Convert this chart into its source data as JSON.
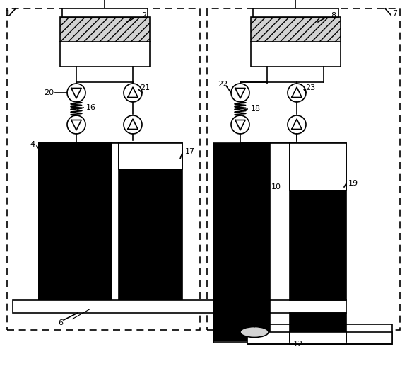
{
  "bg_color": "#ffffff",
  "lc": "#000000",
  "lw": 1.2,
  "fs": 8
}
